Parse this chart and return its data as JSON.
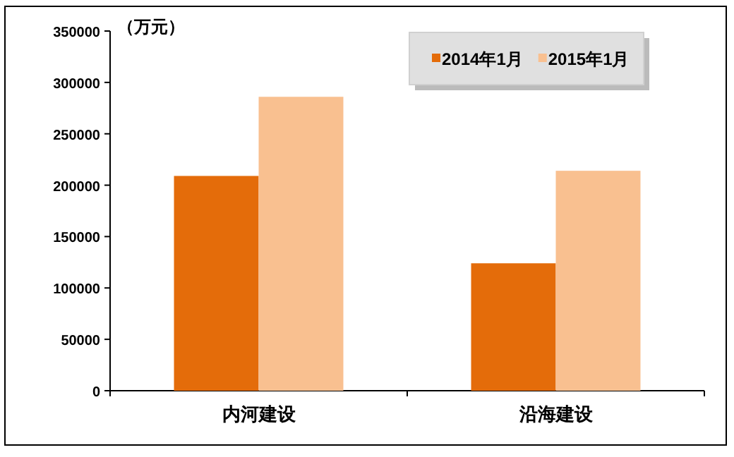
{
  "chart_data": {
    "type": "bar",
    "ylabel": "（万元）",
    "categories": [
      "内河建设",
      "沿海建设"
    ],
    "series": [
      {
        "name": "2014年1月",
        "color": "#e46c0a",
        "values": [
          209000,
          124000
        ]
      },
      {
        "name": "2015年1月",
        "color": "#f9c090",
        "values": [
          286000,
          214000
        ]
      }
    ],
    "ylim": [
      0,
      350000
    ],
    "yticks": [
      0,
      50000,
      100000,
      150000,
      200000,
      250000,
      300000,
      350000
    ],
    "grid": false,
    "legend": "top right"
  }
}
